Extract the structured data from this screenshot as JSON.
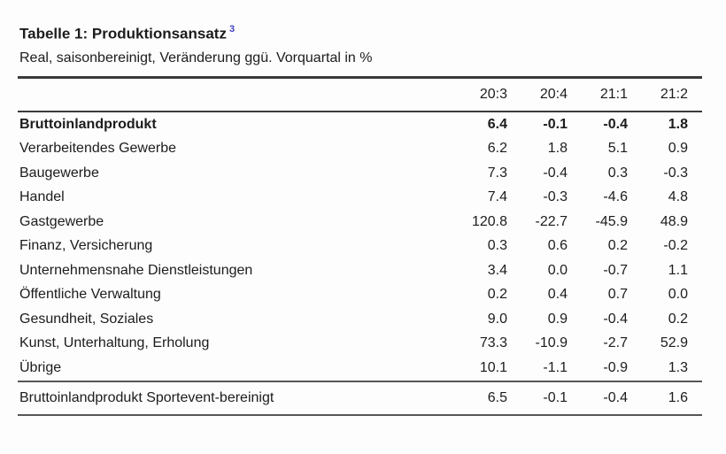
{
  "page": {
    "background_color": "#fdfdfd",
    "text_color": "#1c1c1c",
    "rule_color": "#3a3a3a",
    "footnote_color": "#4343c8"
  },
  "title": {
    "text": "Tabelle 1: Produktionsansatz",
    "footnote_ref": "3"
  },
  "subtitle": "Real, saisonbereinigt, Veränderung ggü. Vorquartal in %",
  "table": {
    "columns": [
      "20:3",
      "20:4",
      "21:1",
      "21:2"
    ],
    "rows": [
      {
        "label": "Bruttoinlandprodukt",
        "bold": true,
        "values": [
          "6.4",
          "-0.1",
          "-0.4",
          "1.8"
        ]
      },
      {
        "label": "Verarbeitendes Gewerbe",
        "bold": false,
        "values": [
          "6.2",
          "1.8",
          "5.1",
          "0.9"
        ]
      },
      {
        "label": "Baugewerbe",
        "bold": false,
        "values": [
          "7.3",
          "-0.4",
          "0.3",
          "-0.3"
        ]
      },
      {
        "label": "Handel",
        "bold": false,
        "values": [
          "7.4",
          "-0.3",
          "-4.6",
          "4.8"
        ]
      },
      {
        "label": "Gastgewerbe",
        "bold": false,
        "values": [
          "120.8",
          "-22.7",
          "-45.9",
          "48.9"
        ]
      },
      {
        "label": "Finanz, Versicherung",
        "bold": false,
        "values": [
          "0.3",
          "0.6",
          "0.2",
          "-0.2"
        ]
      },
      {
        "label": "Unternehmensnahe Dienstleistungen",
        "bold": false,
        "values": [
          "3.4",
          "0.0",
          "-0.7",
          "1.1"
        ]
      },
      {
        "label": "Öffentliche Verwaltung",
        "bold": false,
        "values": [
          "0.2",
          "0.4",
          "0.7",
          "0.0"
        ]
      },
      {
        "label": "Gesundheit, Soziales",
        "bold": false,
        "values": [
          "9.0",
          "0.9",
          "-0.4",
          "0.2"
        ]
      },
      {
        "label": "Kunst, Unterhaltung, Erholung",
        "bold": false,
        "values": [
          "73.3",
          "-10.9",
          "-2.7",
          "52.9"
        ]
      },
      {
        "label": "Übrige",
        "bold": false,
        "values": [
          "10.1",
          "-1.1",
          "-0.9",
          "1.3"
        ]
      }
    ],
    "footer_rows": [
      {
        "label": "Bruttoinlandprodukt Sportevent-bereinigt",
        "values": [
          "6.5",
          "-0.1",
          "-0.4",
          "1.6"
        ]
      }
    ]
  },
  "chart_data": {
    "type": "table",
    "title": "Tabelle 1: Produktionsansatz",
    "subtitle": "Real, saisonbereinigt, Veränderung ggü. Vorquartal in %",
    "columns": [
      "20:3",
      "20:4",
      "21:1",
      "21:2"
    ],
    "rows": [
      {
        "label": "Bruttoinlandprodukt",
        "values": [
          6.4,
          -0.1,
          -0.4,
          1.8
        ]
      },
      {
        "label": "Verarbeitendes Gewerbe",
        "values": [
          6.2,
          1.8,
          5.1,
          0.9
        ]
      },
      {
        "label": "Baugewerbe",
        "values": [
          7.3,
          -0.4,
          0.3,
          -0.3
        ]
      },
      {
        "label": "Handel",
        "values": [
          7.4,
          -0.3,
          -4.6,
          4.8
        ]
      },
      {
        "label": "Gastgewerbe",
        "values": [
          120.8,
          -22.7,
          -45.9,
          48.9
        ]
      },
      {
        "label": "Finanz, Versicherung",
        "values": [
          0.3,
          0.6,
          0.2,
          -0.2
        ]
      },
      {
        "label": "Unternehmensnahe Dienstleistungen",
        "values": [
          3.4,
          0.0,
          -0.7,
          1.1
        ]
      },
      {
        "label": "Öffentliche Verwaltung",
        "values": [
          0.2,
          0.4,
          0.7,
          0.0
        ]
      },
      {
        "label": "Gesundheit, Soziales",
        "values": [
          9.0,
          0.9,
          -0.4,
          0.2
        ]
      },
      {
        "label": "Kunst, Unterhaltung, Erholung",
        "values": [
          73.3,
          -10.9,
          -2.7,
          52.9
        ]
      },
      {
        "label": "Übrige",
        "values": [
          10.1,
          -1.1,
          -0.9,
          1.3
        ]
      },
      {
        "label": "Bruttoinlandprodukt Sportevent-bereinigt",
        "values": [
          6.5,
          -0.1,
          -0.4,
          1.6
        ]
      }
    ]
  }
}
